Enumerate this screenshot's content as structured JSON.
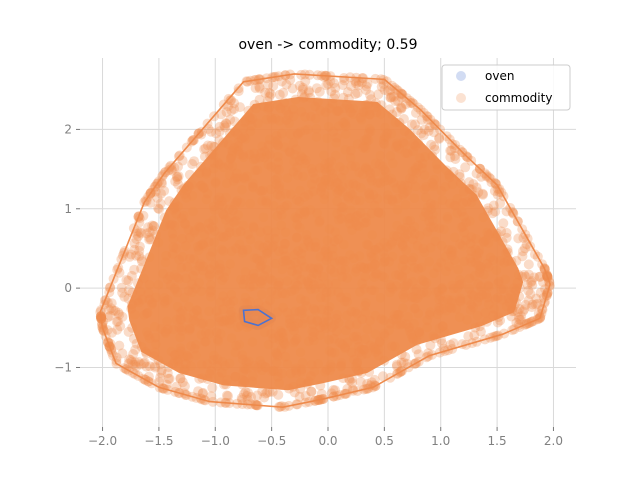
{
  "chart_data": {
    "type": "scatter",
    "title": "oven -> commodity; 0.59",
    "xlabel": "",
    "ylabel": "",
    "xlim": [
      -2.2,
      2.2
    ],
    "ylim": [
      -1.75,
      2.9
    ],
    "xticks": [
      -2.0,
      -1.5,
      -1.0,
      -0.5,
      0.0,
      0.5,
      1.0,
      1.5,
      2.0
    ],
    "xtick_labels": [
      "−2.0",
      "−1.5",
      "−1.0",
      "−0.5",
      "0.0",
      "0.5",
      "1.0",
      "1.5",
      "2.0"
    ],
    "yticks": [
      -1,
      0,
      1,
      2
    ],
    "ytick_labels": [
      "−1",
      "0",
      "1",
      "2"
    ],
    "grid": true,
    "legend_position": "top-right",
    "series": [
      {
        "name": "oven",
        "color": "#4c72d0",
        "hull": [
          [
            -0.75,
            -0.28
          ],
          [
            -0.62,
            -0.27
          ],
          [
            -0.5,
            -0.38
          ],
          [
            -0.62,
            -0.47
          ],
          [
            -0.74,
            -0.42
          ]
        ]
      },
      {
        "name": "commodity",
        "color": "#ee8a4b",
        "hull": [
          [
            -0.3,
            2.7
          ],
          [
            0.5,
            2.63
          ],
          [
            0.82,
            2.25
          ],
          [
            1.2,
            1.7
          ],
          [
            1.5,
            1.3
          ],
          [
            1.92,
            0.25
          ],
          [
            1.97,
            0.05
          ],
          [
            1.88,
            -0.38
          ],
          [
            1.55,
            -0.58
          ],
          [
            0.9,
            -0.85
          ],
          [
            0.4,
            -1.25
          ],
          [
            -0.05,
            -1.4
          ],
          [
            -0.4,
            -1.5
          ],
          [
            -1.05,
            -1.43
          ],
          [
            -1.5,
            -1.25
          ],
          [
            -1.88,
            -0.95
          ],
          [
            -2.0,
            -0.5
          ],
          [
            -2.02,
            -0.3
          ],
          [
            -1.63,
            1.08
          ],
          [
            -1.45,
            1.45
          ],
          [
            -0.75,
            2.6
          ]
        ]
      }
    ]
  }
}
